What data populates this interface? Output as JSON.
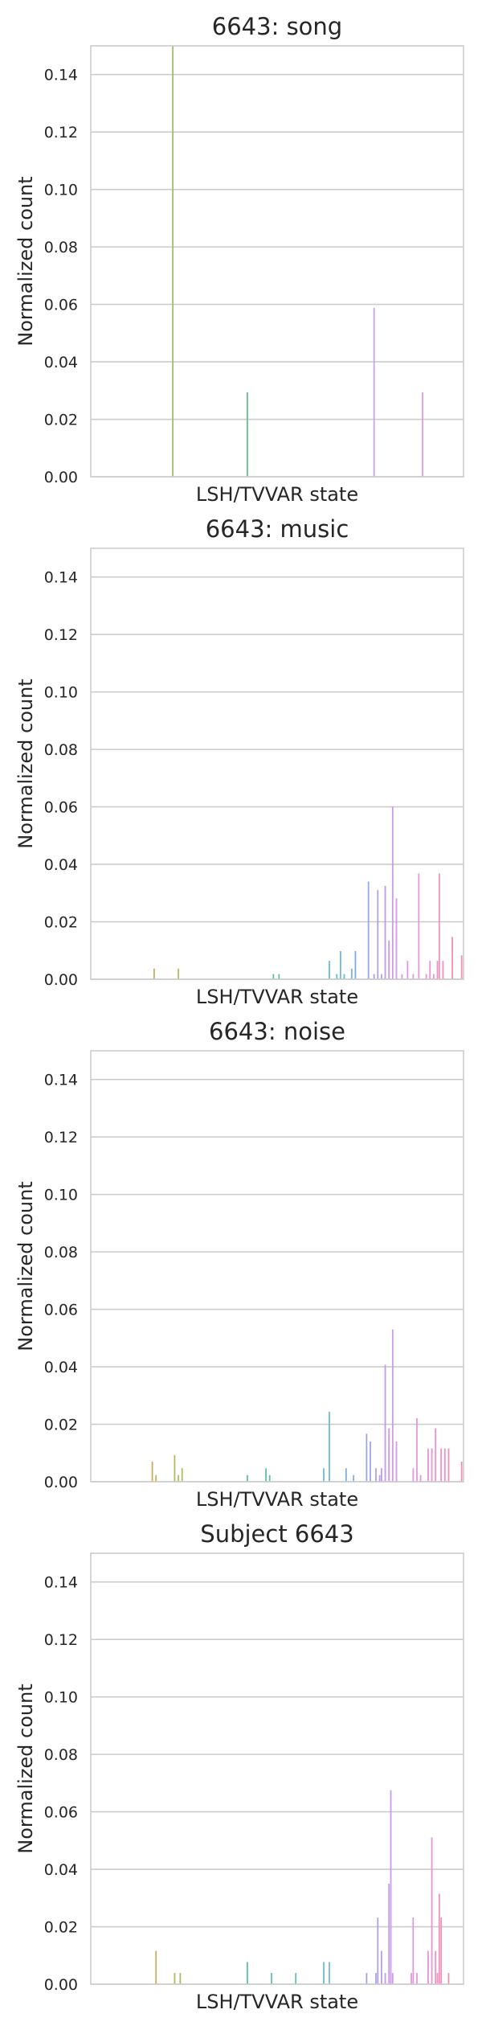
{
  "chart_data": [
    {
      "type": "bar",
      "title": "6643: song",
      "xlabel": "LSH/TVVAR state",
      "ylabel": "Normalized count",
      "ylim": [
        0,
        0.15
      ],
      "yticks": [
        "0.00",
        "0.02",
        "0.04",
        "0.06",
        "0.08",
        "0.10",
        "0.12",
        "0.14"
      ],
      "grid": true,
      "bars": [
        {
          "x": 0.22,
          "value": 0.15,
          "color": "#9cc26e"
        },
        {
          "x": 0.42,
          "value": 0.0294,
          "color": "#5fbf8f"
        },
        {
          "x": 0.76,
          "value": 0.0588,
          "color": "#c9a3e6"
        },
        {
          "x": 0.89,
          "value": 0.0294,
          "color": "#e898df"
        }
      ]
    },
    {
      "type": "bar",
      "title": "6643: music",
      "xlabel": "LSH/TVVAR state",
      "ylabel": "Normalized count",
      "ylim": [
        0,
        0.15
      ],
      "yticks": [
        "0.00",
        "0.02",
        "0.04",
        "0.06",
        "0.08",
        "0.10",
        "0.12",
        "0.14"
      ],
      "grid": true,
      "bars": [
        {
          "x": 0.17,
          "value": 0.0037,
          "color": "#c4b05e"
        },
        {
          "x": 0.235,
          "value": 0.0037,
          "color": "#b6b860"
        },
        {
          "x": 0.49,
          "value": 0.0018,
          "color": "#5ec1ad"
        },
        {
          "x": 0.505,
          "value": 0.0018,
          "color": "#5fc2b6"
        },
        {
          "x": 0.64,
          "value": 0.0064,
          "color": "#6cbcd0"
        },
        {
          "x": 0.66,
          "value": 0.0018,
          "color": "#6cb9d6"
        },
        {
          "x": 0.67,
          "value": 0.0098,
          "color": "#74b7dc"
        },
        {
          "x": 0.68,
          "value": 0.0018,
          "color": "#76b3de"
        },
        {
          "x": 0.7,
          "value": 0.0037,
          "color": "#7ab0e0"
        },
        {
          "x": 0.71,
          "value": 0.0098,
          "color": "#7cace2"
        },
        {
          "x": 0.745,
          "value": 0.034,
          "color": "#9aa6ea"
        },
        {
          "x": 0.76,
          "value": 0.0018,
          "color": "#a3a3ec"
        },
        {
          "x": 0.77,
          "value": 0.031,
          "color": "#afa0ed"
        },
        {
          "x": 0.78,
          "value": 0.0018,
          "color": "#b79eee"
        },
        {
          "x": 0.79,
          "value": 0.0325,
          "color": "#bd9cee"
        },
        {
          "x": 0.8,
          "value": 0.0135,
          "color": "#c39bee"
        },
        {
          "x": 0.81,
          "value": 0.0601,
          "color": "#cc9aee"
        },
        {
          "x": 0.82,
          "value": 0.0282,
          "color": "#d399ec"
        },
        {
          "x": 0.835,
          "value": 0.0018,
          "color": "#d998ea"
        },
        {
          "x": 0.85,
          "value": 0.0064,
          "color": "#de97e8"
        },
        {
          "x": 0.865,
          "value": 0.0018,
          "color": "#e296e4"
        },
        {
          "x": 0.88,
          "value": 0.0368,
          "color": "#e696de"
        },
        {
          "x": 0.9,
          "value": 0.0018,
          "color": "#e995d8"
        },
        {
          "x": 0.91,
          "value": 0.0064,
          "color": "#eb94d2"
        },
        {
          "x": 0.92,
          "value": 0.0018,
          "color": "#ed93cc"
        },
        {
          "x": 0.93,
          "value": 0.0064,
          "color": "#ee92c6"
        },
        {
          "x": 0.935,
          "value": 0.0368,
          "color": "#ef91c0"
        },
        {
          "x": 0.945,
          "value": 0.0064,
          "color": "#f090ba"
        },
        {
          "x": 0.97,
          "value": 0.0147,
          "color": "#f18fb4"
        },
        {
          "x": 0.995,
          "value": 0.0083,
          "color": "#f28eae"
        }
      ]
    },
    {
      "type": "bar",
      "title": "6643: noise",
      "xlabel": "LSH/TVVAR state",
      "ylabel": "Normalized count",
      "ylim": [
        0,
        0.15
      ],
      "yticks": [
        "0.00",
        "0.02",
        "0.04",
        "0.06",
        "0.08",
        "0.10",
        "0.12",
        "0.14"
      ],
      "grid": true,
      "bars": [
        {
          "x": 0.165,
          "value": 0.007,
          "color": "#c9ad5e"
        },
        {
          "x": 0.175,
          "value": 0.0023,
          "color": "#c6af5f"
        },
        {
          "x": 0.225,
          "value": 0.0093,
          "color": "#b9b65f"
        },
        {
          "x": 0.235,
          "value": 0.0023,
          "color": "#b5b861"
        },
        {
          "x": 0.245,
          "value": 0.0047,
          "color": "#b0ba62"
        },
        {
          "x": 0.42,
          "value": 0.0023,
          "color": "#5fbf9a"
        },
        {
          "x": 0.47,
          "value": 0.0047,
          "color": "#5ec1a9"
        },
        {
          "x": 0.48,
          "value": 0.0023,
          "color": "#5ec1ae"
        },
        {
          "x": 0.625,
          "value": 0.0047,
          "color": "#6cbdce"
        },
        {
          "x": 0.64,
          "value": 0.0244,
          "color": "#70bbd2"
        },
        {
          "x": 0.685,
          "value": 0.0047,
          "color": "#7ab2de"
        },
        {
          "x": 0.705,
          "value": 0.0023,
          "color": "#80aee2"
        },
        {
          "x": 0.74,
          "value": 0.0167,
          "color": "#98a7ea"
        },
        {
          "x": 0.75,
          "value": 0.014,
          "color": "#a1a4ec"
        },
        {
          "x": 0.765,
          "value": 0.0047,
          "color": "#aca1ed"
        },
        {
          "x": 0.775,
          "value": 0.0023,
          "color": "#b49fee"
        },
        {
          "x": 0.78,
          "value": 0.0047,
          "color": "#b99dee"
        },
        {
          "x": 0.79,
          "value": 0.0407,
          "color": "#c19bee"
        },
        {
          "x": 0.8,
          "value": 0.0186,
          "color": "#c89aee"
        },
        {
          "x": 0.81,
          "value": 0.053,
          "color": "#cf9aed"
        },
        {
          "x": 0.82,
          "value": 0.014,
          "color": "#d599eb"
        },
        {
          "x": 0.865,
          "value": 0.0047,
          "color": "#e296e4"
        },
        {
          "x": 0.875,
          "value": 0.0221,
          "color": "#e596e0"
        },
        {
          "x": 0.885,
          "value": 0.0023,
          "color": "#e795da"
        },
        {
          "x": 0.905,
          "value": 0.0116,
          "color": "#ea94d4"
        },
        {
          "x": 0.915,
          "value": 0.0116,
          "color": "#ec93ce"
        },
        {
          "x": 0.925,
          "value": 0.0186,
          "color": "#ed92c8"
        },
        {
          "x": 0.94,
          "value": 0.0116,
          "color": "#ef91c2"
        },
        {
          "x": 0.95,
          "value": 0.0116,
          "color": "#f090bc"
        },
        {
          "x": 0.96,
          "value": 0.0116,
          "color": "#f18fb6"
        },
        {
          "x": 0.995,
          "value": 0.007,
          "color": "#f28eae"
        }
      ]
    },
    {
      "type": "bar",
      "title": "Subject 6643",
      "xlabel": "LSH/TVVAR state",
      "ylabel": "Normalized count",
      "ylim": [
        0,
        0.15
      ],
      "yticks": [
        "0.00",
        "0.02",
        "0.04",
        "0.06",
        "0.08",
        "0.10",
        "0.12",
        "0.14"
      ],
      "grid": true,
      "bars": [
        {
          "x": 0.175,
          "value": 0.0116,
          "color": "#c6af5f"
        },
        {
          "x": 0.225,
          "value": 0.0039,
          "color": "#b9b65f"
        },
        {
          "x": 0.24,
          "value": 0.0039,
          "color": "#b3b961"
        },
        {
          "x": 0.42,
          "value": 0.0077,
          "color": "#5fbf9a"
        },
        {
          "x": 0.485,
          "value": 0.0039,
          "color": "#5ec1ae"
        },
        {
          "x": 0.55,
          "value": 0.0039,
          "color": "#63c0bd"
        },
        {
          "x": 0.625,
          "value": 0.0077,
          "color": "#6cbdce"
        },
        {
          "x": 0.64,
          "value": 0.0077,
          "color": "#70bbd2"
        },
        {
          "x": 0.74,
          "value": 0.0039,
          "color": "#98a7ea"
        },
        {
          "x": 0.765,
          "value": 0.0039,
          "color": "#aca1ed"
        },
        {
          "x": 0.77,
          "value": 0.0232,
          "color": "#b0a0ed"
        },
        {
          "x": 0.78,
          "value": 0.0116,
          "color": "#b99dee"
        },
        {
          "x": 0.79,
          "value": 0.0039,
          "color": "#c19bee"
        },
        {
          "x": 0.8,
          "value": 0.035,
          "color": "#c89aee"
        },
        {
          "x": 0.805,
          "value": 0.0675,
          "color": "#cc9aee"
        },
        {
          "x": 0.81,
          "value": 0.0039,
          "color": "#cf9aed"
        },
        {
          "x": 0.86,
          "value": 0.0039,
          "color": "#e196e5"
        },
        {
          "x": 0.865,
          "value": 0.0232,
          "color": "#e296e4"
        },
        {
          "x": 0.875,
          "value": 0.0039,
          "color": "#e596e0"
        },
        {
          "x": 0.905,
          "value": 0.0116,
          "color": "#ea94d4"
        },
        {
          "x": 0.915,
          "value": 0.0511,
          "color": "#ec93ce"
        },
        {
          "x": 0.925,
          "value": 0.0116,
          "color": "#ed92c8"
        },
        {
          "x": 0.93,
          "value": 0.0039,
          "color": "#ee92c5"
        },
        {
          "x": 0.935,
          "value": 0.0315,
          "color": "#ef91c0"
        },
        {
          "x": 0.94,
          "value": 0.0232,
          "color": "#ef91bd"
        },
        {
          "x": 0.96,
          "value": 0.0039,
          "color": "#f18fb6"
        }
      ]
    }
  ]
}
